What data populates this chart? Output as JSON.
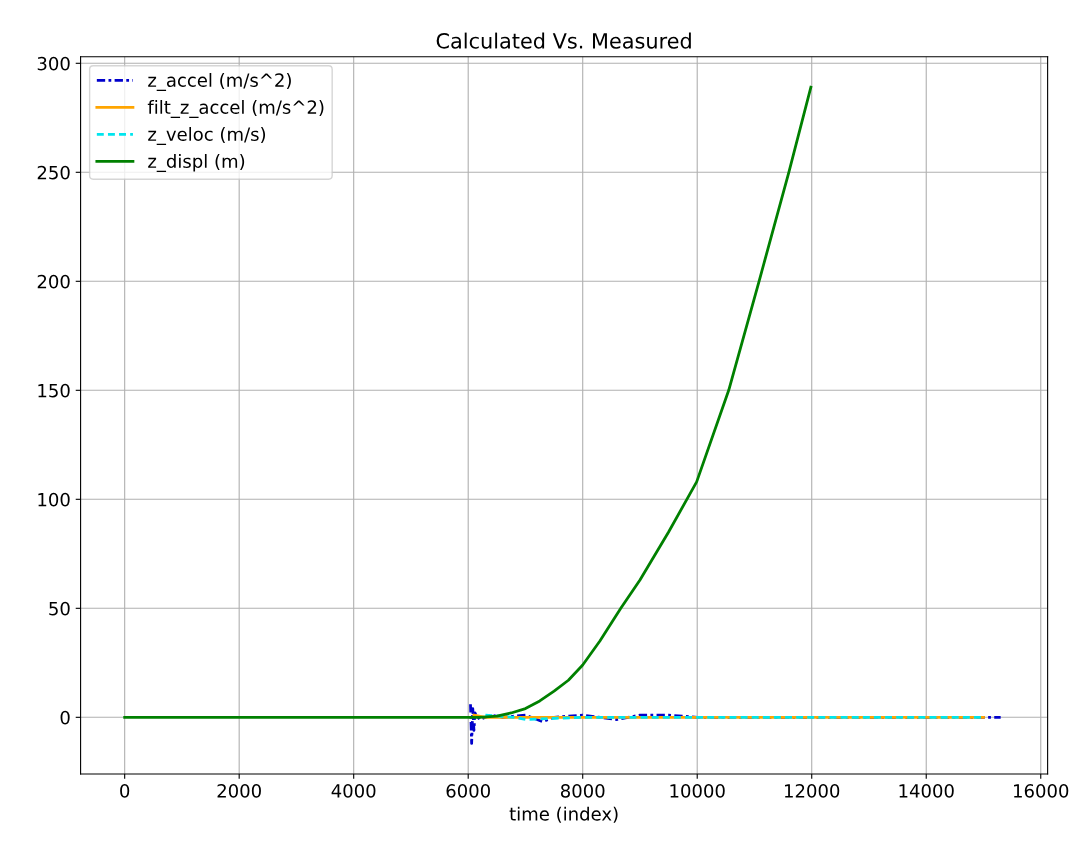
{
  "chart_data": {
    "type": "line",
    "title": "Calculated Vs. Measured",
    "xlabel": "time (index)",
    "xlim": [
      -770,
      16120
    ],
    "ylim": [
      -26,
      303
    ],
    "xticks": [
      0,
      2000,
      4000,
      6000,
      8000,
      10000,
      12000,
      14000,
      16000
    ],
    "yticks": [
      0,
      50,
      100,
      150,
      200,
      250,
      300
    ],
    "grid": true,
    "legend": "top left",
    "series": [
      {
        "name": "z_accel (m/s^2)",
        "color": "#0000cc",
        "line_style": "dashdot",
        "x": [
          6040,
          6060,
          6080,
          6100,
          6120,
          6200,
          6400,
          6600,
          7000,
          7200,
          7300,
          7500,
          8000,
          8600,
          9000,
          9500,
          10000,
          11000,
          12000,
          13000,
          14000,
          15000,
          15300
        ],
        "values": [
          6,
          -12,
          4,
          -6,
          2,
          -1,
          1,
          0,
          1,
          -1,
          -2,
          0,
          1,
          -1,
          1,
          1,
          0,
          0,
          0,
          0,
          0,
          0,
          0
        ]
      },
      {
        "name": "filt_z_accel (m/s^2)",
        "color": "#ffa500",
        "line_style": "solid",
        "x": [
          6100,
          6300,
          7000,
          8000,
          10000,
          12000,
          15000
        ],
        "values": [
          1,
          0,
          0,
          0,
          0,
          0,
          0
        ]
      },
      {
        "name": "z_veloc (m/s)",
        "color": "#00e5ee",
        "line_style": "dashed",
        "x": [
          6300,
          6800,
          7000,
          8000,
          10000,
          12000,
          15000
        ],
        "values": [
          1,
          0,
          -1,
          0,
          0,
          0,
          0
        ]
      },
      {
        "name": "z_displ (m)",
        "color": "#008000",
        "line_style": "solid",
        "x": [
          0,
          6200,
          6500,
          6750,
          7000,
          7250,
          7500,
          7750,
          8000,
          8300,
          8665,
          9000,
          9500,
          9990,
          10550,
          11080,
          11600,
          11985
        ],
        "values": [
          0,
          0,
          0.5,
          2,
          4,
          7.5,
          12,
          17,
          24,
          35,
          50,
          63,
          85,
          108,
          150,
          200,
          250,
          289
        ]
      }
    ]
  }
}
